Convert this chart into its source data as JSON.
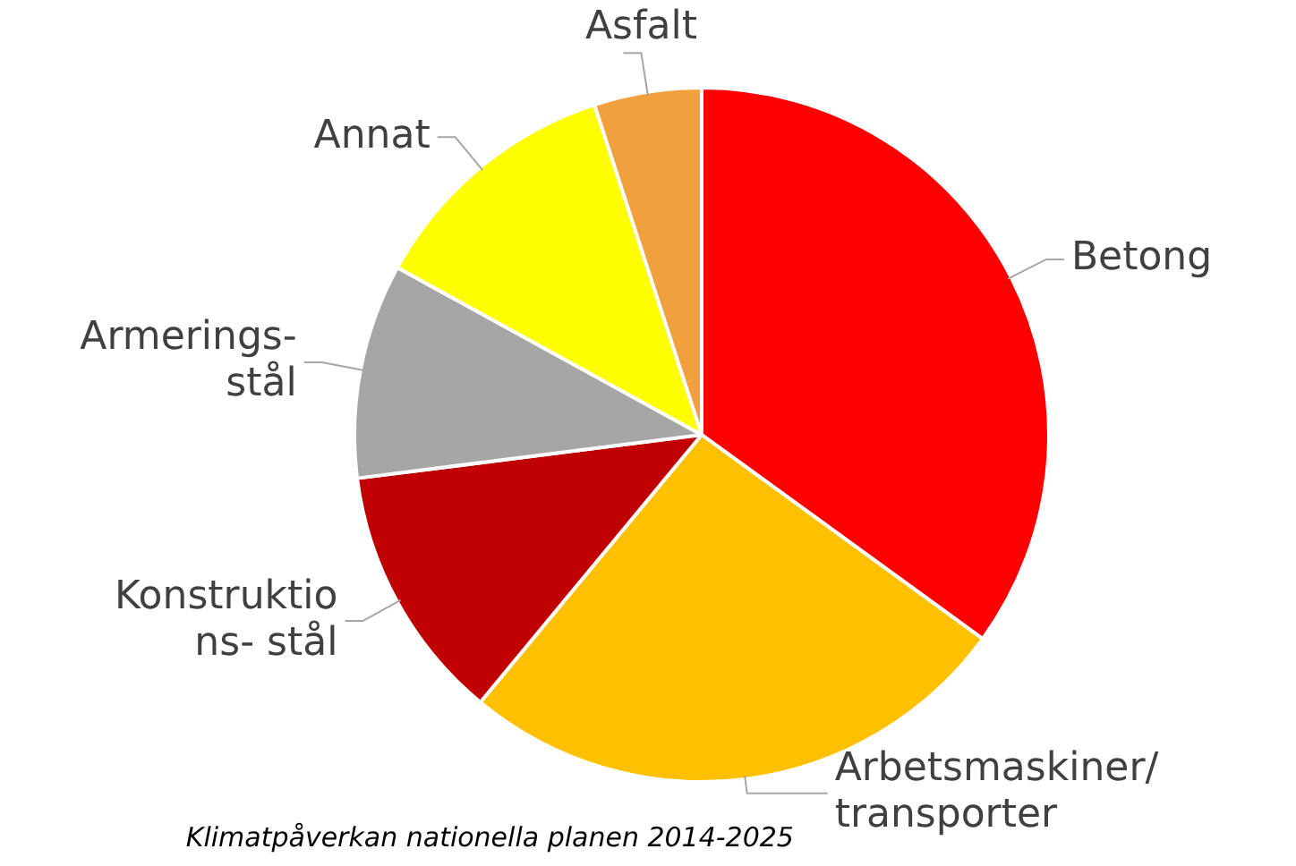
{
  "chart_data": {
    "type": "pie",
    "title": "Klimatpåverkan nationella planen 2014-2025",
    "categories": [
      "Betong",
      "Arbetsmaskiner/\ntransporter",
      "Konstruktio\nns- stål",
      "Armerings-\nstål",
      "Annat",
      "Asfalt"
    ],
    "values": [
      35,
      26,
      12,
      10,
      12,
      5
    ],
    "colors": [
      "#ff0000",
      "#ffc000",
      "#c00000",
      "#a6a6a6",
      "#ffff00",
      "#f0a03c"
    ],
    "legend": false
  }
}
